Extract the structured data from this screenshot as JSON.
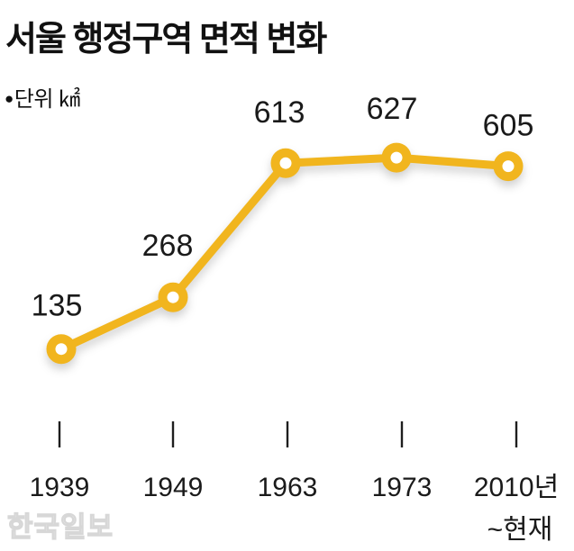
{
  "header": {
    "title": "서울 행정구역 면적 변화",
    "unit_bullet": "●",
    "unit_label": "단위 ㎢"
  },
  "watermark": {
    "label": "한국일보"
  },
  "chart_data": {
    "type": "line",
    "title": "서울 행정구역 면적 변화",
    "unit": "㎢",
    "categories": [
      "1939",
      "1949",
      "1963",
      "1973",
      "2010년~현재"
    ],
    "x_tick_labels": [
      [
        "1939"
      ],
      [
        "1949"
      ],
      [
        "1963"
      ],
      [
        "1973"
      ],
      [
        "2010년",
        "~현재"
      ]
    ],
    "values": [
      135,
      268,
      613,
      627,
      605
    ],
    "value_labels": [
      "135",
      "268",
      "613",
      "627",
      "605"
    ],
    "line_color": "#F1B51E",
    "marker_fill": "#FFFFFF",
    "text_color": "#1A1A1A",
    "tick_color": "#1E1E1E",
    "ylim": [
      0,
      700
    ],
    "grid": false,
    "legend": "none"
  }
}
